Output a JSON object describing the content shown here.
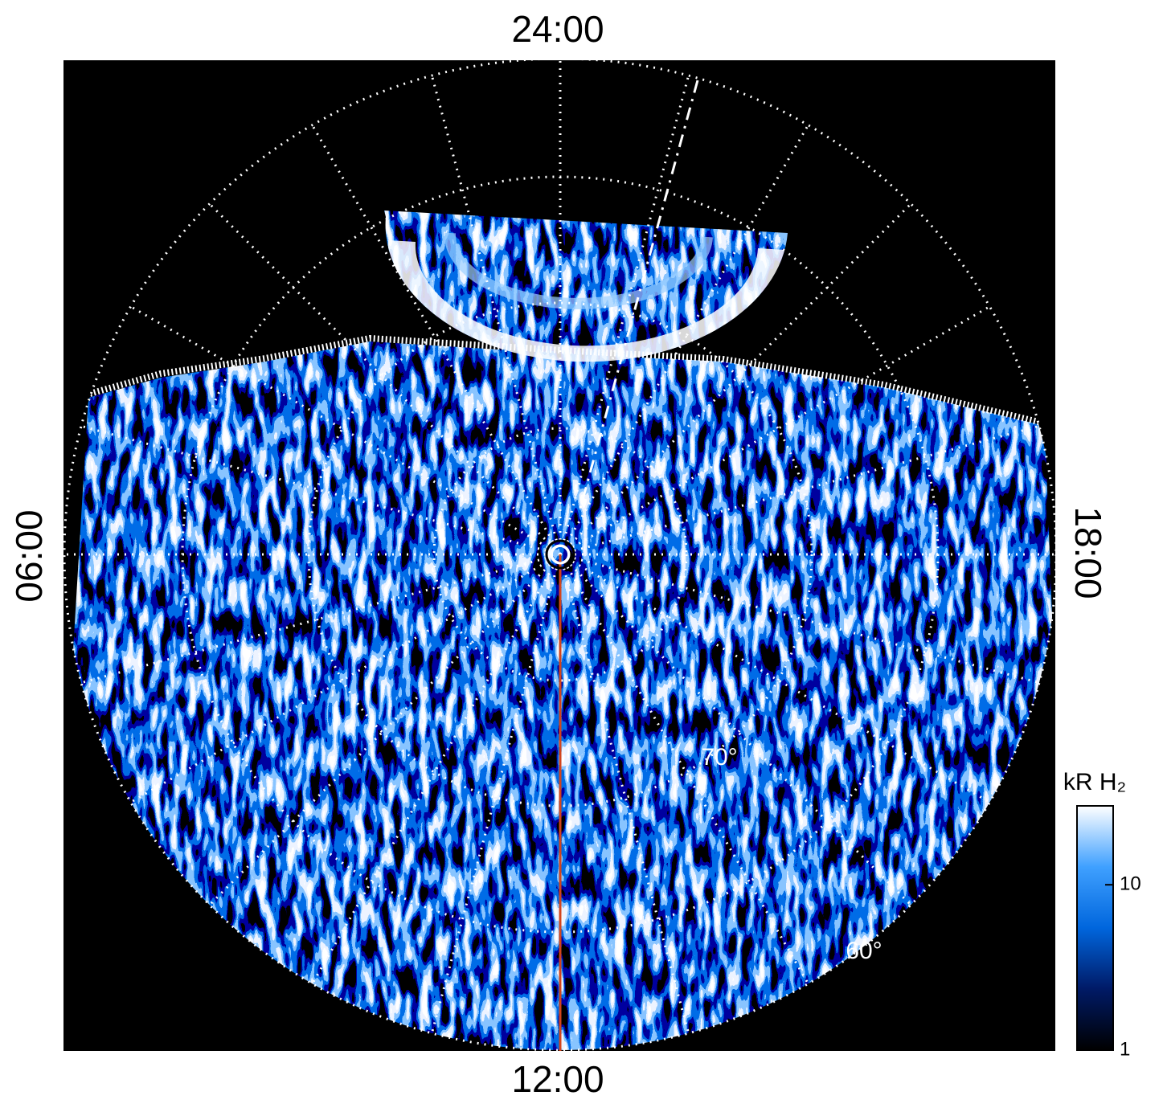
{
  "chart_data": {
    "type": "polar-image",
    "labels": {
      "top": "24:00",
      "bottom": "12:00",
      "left": "06:00",
      "right": "18:00"
    },
    "latitude_labels": [
      "70°",
      "60°"
    ],
    "colorbar": {
      "label": "kR H₂",
      "log": true,
      "ylim": [
        1,
        30
      ],
      "yticks": [
        1,
        10
      ],
      "colors": [
        "#000000",
        "#001a66",
        "#0066dd",
        "#3fa0ff",
        "#ffffff"
      ]
    }
  }
}
